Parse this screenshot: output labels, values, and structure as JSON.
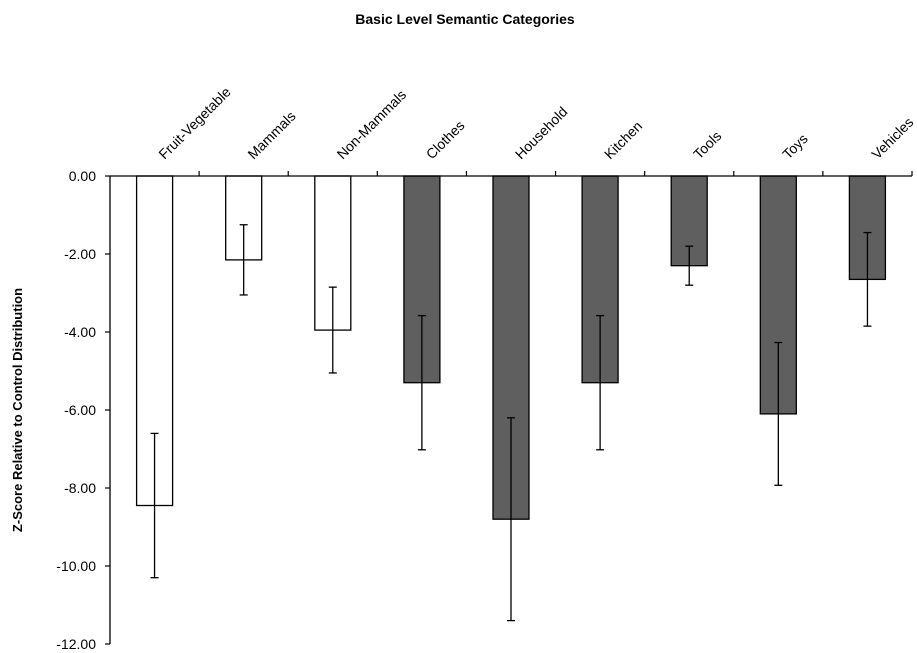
{
  "chart_data": {
    "type": "bar",
    "title": "Basic Level Semantic Categories",
    "xlabel": "",
    "ylabel": "Z-Score Relative to Control Distribution",
    "ylim": [
      -12,
      0
    ],
    "yticks": [
      0,
      -2,
      -4,
      -6,
      -8,
      -10,
      -12
    ],
    "ytick_labels": [
      "0.00",
      "-2.00",
      "-4.00",
      "-6.00",
      "-8.00",
      "-10.00",
      "-12.00"
    ],
    "categories": [
      "Fruit-Vegetable",
      "Mammals",
      "Non-Mammals",
      "Clothes",
      "Household",
      "Kitchen",
      "Tools",
      "Toys",
      "Vehicles"
    ],
    "values": [
      -8.45,
      -2.15,
      -3.95,
      -5.3,
      -8.8,
      -5.3,
      -2.3,
      -6.1,
      -2.65
    ],
    "error": [
      1.85,
      0.9,
      1.1,
      1.72,
      2.6,
      1.72,
      0.5,
      1.83,
      1.2
    ],
    "bar_colors": [
      "#ffffff",
      "#ffffff",
      "#ffffff",
      "#5f5f5f",
      "#5f5f5f",
      "#5f5f5f",
      "#5f5f5f",
      "#5f5f5f",
      "#5f5f5f"
    ],
    "grid": false,
    "legend": "none"
  }
}
